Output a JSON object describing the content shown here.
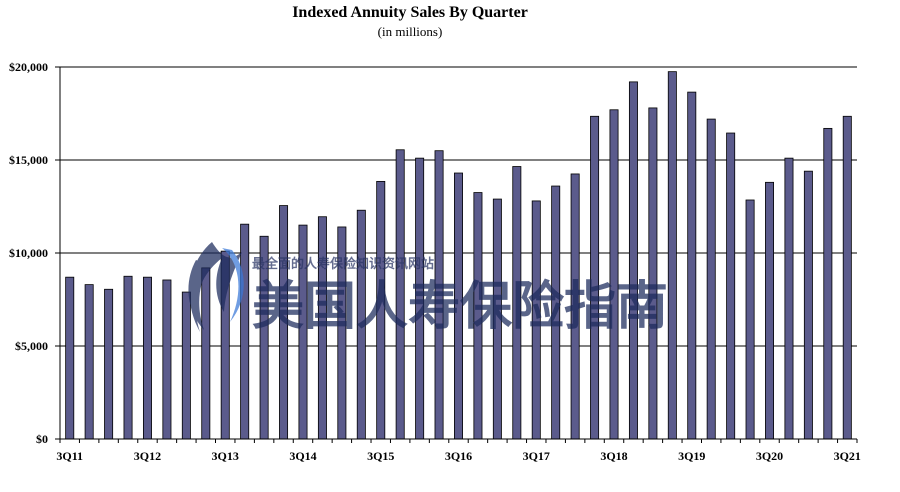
{
  "chart_data": {
    "type": "bar",
    "title": "Indexed Annuity Sales By Quarter",
    "subtitle": "(in millions)",
    "xlabel": "",
    "ylabel": "",
    "ylim": [
      0,
      20000
    ],
    "yticks": [
      "$0",
      "$5,000",
      "$10,000",
      "$15,000",
      "$20,000"
    ],
    "ytick_values": [
      0,
      5000,
      10000,
      15000,
      20000
    ],
    "grid": true,
    "bar_color": "#5b5b8c",
    "categories": [
      "3Q11",
      "4Q11",
      "1Q12",
      "2Q12",
      "3Q12",
      "4Q12",
      "1Q13",
      "2Q13",
      "3Q13",
      "4Q13",
      "1Q14",
      "2Q14",
      "3Q14",
      "4Q14",
      "1Q15",
      "2Q15",
      "3Q15",
      "4Q15",
      "1Q16",
      "2Q16",
      "3Q16",
      "4Q16",
      "1Q17",
      "2Q17",
      "3Q17",
      "4Q17",
      "1Q18",
      "2Q18",
      "3Q18",
      "4Q18",
      "1Q19",
      "2Q19",
      "3Q19",
      "4Q19",
      "1Q20",
      "2Q20",
      "3Q20",
      "4Q20",
      "1Q21",
      "2Q21",
      "3Q21"
    ],
    "visible_x_labels": [
      "3Q11",
      "3Q12",
      "3Q13",
      "3Q14",
      "3Q15",
      "3Q16",
      "3Q17",
      "3Q18",
      "3Q19",
      "3Q20",
      "3Q21"
    ],
    "values": [
      8700,
      8300,
      8050,
      8750,
      8700,
      8550,
      7900,
      9200,
      10100,
      11550,
      10900,
      12550,
      11500,
      11950,
      11400,
      12300,
      13850,
      15550,
      15100,
      15500,
      14300,
      13250,
      12900,
      14650,
      12800,
      13600,
      14250,
      17350,
      17700,
      19200,
      17800,
      19750,
      18650,
      17200,
      16450,
      12850,
      13800,
      15100,
      14400,
      16700,
      17350
    ]
  },
  "watermark": {
    "text": "美国人寿保险指南",
    "small_text": "最全面的人寿保险知识资讯网站"
  }
}
